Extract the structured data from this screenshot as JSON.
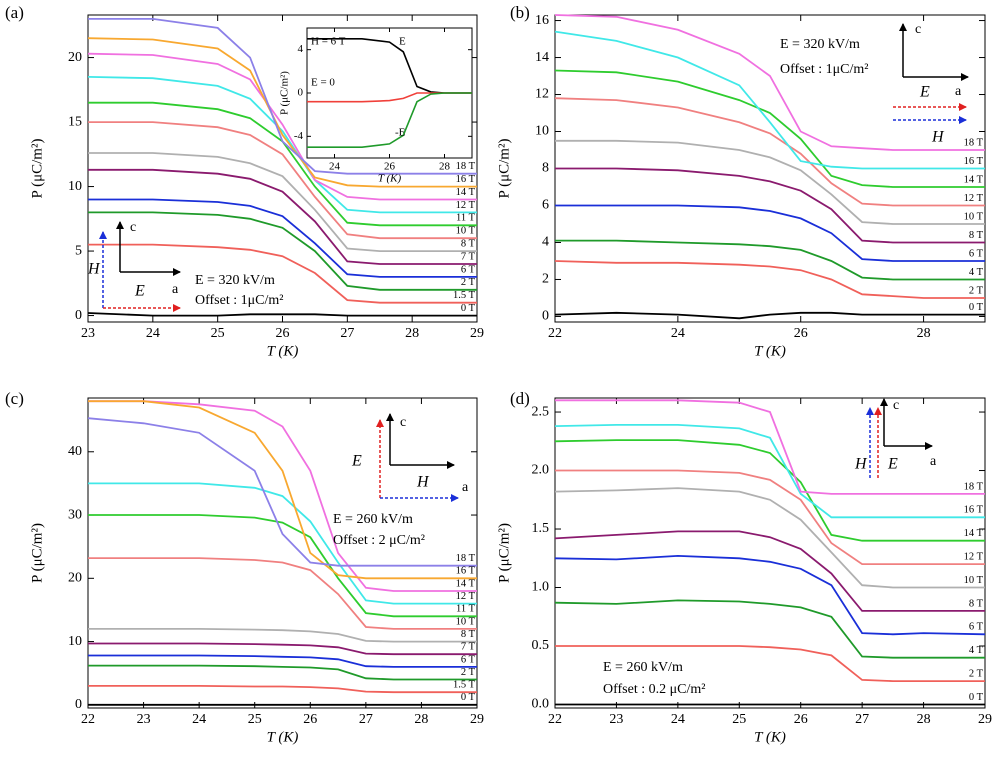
{
  "chart_data": [
    {
      "type": "line",
      "panel_label": "(a)",
      "x_label": "T (K)",
      "y_label": "P (μC/m²)",
      "xlim": [
        23,
        29
      ],
      "xticks": [
        23,
        24,
        25,
        26,
        27,
        28,
        29
      ],
      "ylim": [
        -0.5,
        23.3
      ],
      "yticks": [
        0,
        5,
        10,
        15,
        20
      ],
      "x": [
        23,
        24,
        25,
        25.5,
        26,
        26.5,
        27,
        27.5,
        28,
        29
      ],
      "series": [
        {
          "name": "0 T",
          "color": "#000000",
          "values": [
            0.2,
            0,
            0,
            0.1,
            0.1,
            0.1,
            0,
            0,
            0,
            0
          ]
        },
        {
          "name": "1.5 T",
          "color": "#f0605a",
          "values": [
            5.5,
            5.5,
            5.3,
            5.1,
            4.6,
            3.3,
            1.2,
            1,
            1,
            1
          ]
        },
        {
          "name": "2 T",
          "color": "#1f9a2a",
          "values": [
            8,
            8,
            7.8,
            7.5,
            6.8,
            5,
            2.3,
            2,
            2,
            2
          ]
        },
        {
          "name": "6 T",
          "color": "#1a2fd8",
          "values": [
            9,
            9,
            8.8,
            8.5,
            7.7,
            5.6,
            3.2,
            3,
            3,
            3
          ]
        },
        {
          "name": "7 T",
          "color": "#8a1a6e",
          "values": [
            11.3,
            11.3,
            11,
            10.6,
            9.6,
            7.3,
            4.2,
            4,
            4,
            4
          ]
        },
        {
          "name": "8 T",
          "color": "#b0b0b0",
          "values": [
            12.6,
            12.6,
            12.3,
            11.8,
            10.8,
            8.2,
            5.2,
            5,
            5,
            5
          ]
        },
        {
          "name": "10 T",
          "color": "#f08080",
          "values": [
            15,
            15,
            14.6,
            14,
            12.5,
            9.2,
            6.3,
            6,
            6,
            6
          ]
        },
        {
          "name": "11 T",
          "color": "#2ecc2e",
          "values": [
            16.5,
            16.5,
            16,
            15.3,
            13.5,
            10,
            7.2,
            7,
            7,
            7
          ]
        },
        {
          "name": "12 T",
          "color": "#40e8e8",
          "values": [
            18.5,
            18.4,
            17.8,
            16.8,
            14.3,
            10.5,
            8.2,
            8,
            8,
            8
          ]
        },
        {
          "name": "14 T",
          "color": "#f070e0",
          "values": [
            20.3,
            20.2,
            19.5,
            18.3,
            14.8,
            10.5,
            9.2,
            9,
            9,
            9
          ]
        },
        {
          "name": "16 T",
          "color": "#f8a830",
          "values": [
            21.5,
            21.4,
            20.7,
            19,
            14,
            10.7,
            10.1,
            10,
            10,
            10
          ]
        },
        {
          "name": "18 T",
          "color": "#8c80e8",
          "values": [
            23,
            23,
            22.3,
            20,
            13.5,
            11.2,
            11,
            11,
            11,
            11
          ]
        }
      ],
      "annotations": [
        "E = 320 kV/m",
        "Offset : 1μC/m²",
        "c",
        "a",
        "H",
        "E"
      ],
      "inset": {
        "type": "line",
        "x_label": "T (K)",
        "y_label": "P (μC/m²)",
        "annotation": "H = 6 T",
        "xlim": [
          23,
          29
        ],
        "xticks": [
          24,
          26,
          28
        ],
        "ylim": [
          -6,
          6
        ],
        "yticks": [
          -4,
          0,
          4
        ],
        "x": [
          23,
          24,
          25,
          26,
          26.5,
          27,
          27.5,
          28,
          29
        ],
        "series": [
          {
            "name": "E",
            "color": "#000000",
            "values": [
              5,
              5,
              5,
              4.7,
              3.8,
              0.6,
              0.1,
              0,
              0
            ]
          },
          {
            "name": "E = 0",
            "color": "#f0403a",
            "values": [
              -0.8,
              -0.8,
              -0.8,
              -0.7,
              -0.5,
              0,
              0,
              0,
              0
            ]
          },
          {
            "name": "-E",
            "color": "#1f9a2a",
            "values": [
              -5,
              -5,
              -5,
              -4.7,
              -3.9,
              -0.8,
              -0.1,
              0,
              0
            ]
          }
        ]
      }
    },
    {
      "type": "line",
      "panel_label": "(b)",
      "x_label": "T (K)",
      "y_label": "P (μC/m²)",
      "xlim": [
        22,
        29
      ],
      "xticks": [
        22,
        24,
        26,
        28
      ],
      "ylim": [
        -0.3,
        16.3
      ],
      "yticks": [
        0,
        2,
        4,
        6,
        8,
        10,
        12,
        14,
        16
      ],
      "x": [
        22,
        23,
        24,
        25,
        25.5,
        26,
        26.5,
        27,
        27.5,
        28,
        29
      ],
      "series": [
        {
          "name": "0 T",
          "color": "#000000",
          "values": [
            0.1,
            0.2,
            0.1,
            -0.1,
            0.1,
            0.2,
            0.2,
            0.1,
            0.1,
            0.1,
            0.1
          ]
        },
        {
          "name": "2 T",
          "color": "#f0605a",
          "values": [
            3,
            2.9,
            2.9,
            2.8,
            2.7,
            2.5,
            2,
            1.2,
            1.1,
            1,
            1
          ]
        },
        {
          "name": "4 T",
          "color": "#1f9a2a",
          "values": [
            4.1,
            4.1,
            4,
            3.9,
            3.8,
            3.6,
            3,
            2.1,
            2,
            2,
            2
          ]
        },
        {
          "name": "6 T",
          "color": "#1a2fd8",
          "values": [
            6,
            6,
            6,
            5.9,
            5.7,
            5.3,
            4.5,
            3.1,
            3,
            3,
            3
          ]
        },
        {
          "name": "8 T",
          "color": "#8a1a6e",
          "values": [
            8,
            8,
            7.9,
            7.6,
            7.3,
            6.8,
            5.8,
            4.1,
            4,
            4,
            4
          ]
        },
        {
          "name": "10 T",
          "color": "#b0b0b0",
          "values": [
            9.5,
            9.5,
            9.4,
            9,
            8.6,
            7.9,
            6.6,
            5.1,
            5,
            5,
            5
          ]
        },
        {
          "name": "12 T",
          "color": "#f08080",
          "values": [
            11.8,
            11.7,
            11.3,
            10.5,
            9.9,
            8.8,
            7.2,
            6.1,
            6,
            6,
            6
          ]
        },
        {
          "name": "14 T",
          "color": "#2ecc2e",
          "values": [
            13.3,
            13.2,
            12.7,
            11.7,
            11,
            9.6,
            7.6,
            7.1,
            7,
            7,
            7
          ]
        },
        {
          "name": "16 T",
          "color": "#40e8e8",
          "values": [
            15.4,
            14.9,
            14,
            12.5,
            10.5,
            8.4,
            8.1,
            8,
            8,
            8,
            8
          ]
        },
        {
          "name": "18 T",
          "color": "#f070e0",
          "values": [
            16.3,
            16.2,
            15.5,
            14.2,
            13,
            10,
            9.2,
            9.1,
            9,
            9,
            9
          ]
        }
      ],
      "annotations": [
        "E = 320 kV/m",
        "Offset : 1μC/m²",
        "c",
        "a",
        "E",
        "H"
      ]
    },
    {
      "type": "line",
      "panel_label": "(c)",
      "x_label": "T (K)",
      "y_label": "P (μC/m²)",
      "xlim": [
        22,
        29
      ],
      "xticks": [
        22,
        23,
        24,
        25,
        26,
        27,
        28,
        29
      ],
      "ylim": [
        -0.5,
        48.5
      ],
      "yticks": [
        0,
        10,
        20,
        30,
        40
      ],
      "x": [
        22,
        23,
        24,
        25,
        25.5,
        26,
        26.5,
        27,
        27.5,
        28,
        29
      ],
      "series": [
        {
          "name": "0 T",
          "color": "#000000",
          "values": [
            0,
            0,
            0,
            0,
            0,
            0,
            0,
            0,
            0,
            0,
            0
          ]
        },
        {
          "name": "1.5 T",
          "color": "#f0605a",
          "values": [
            3,
            3,
            3,
            2.9,
            2.9,
            2.8,
            2.6,
            2.1,
            2,
            2,
            2
          ]
        },
        {
          "name": "2 T",
          "color": "#1f9a2a",
          "values": [
            6.2,
            6.2,
            6.2,
            6.1,
            6,
            5.9,
            5.6,
            4.2,
            4,
            4,
            4
          ]
        },
        {
          "name": "6 T",
          "color": "#1a2fd8",
          "values": [
            7.8,
            7.8,
            7.8,
            7.7,
            7.6,
            7.5,
            7.2,
            6.1,
            6,
            6,
            6
          ]
        },
        {
          "name": "7 T",
          "color": "#8a1a6e",
          "values": [
            9.7,
            9.7,
            9.7,
            9.6,
            9.5,
            9.4,
            9.1,
            8.1,
            8,
            8,
            8
          ]
        },
        {
          "name": "8 T",
          "color": "#b0b0b0",
          "values": [
            12,
            12,
            12,
            11.9,
            11.8,
            11.6,
            11.2,
            10.1,
            10,
            10,
            10
          ]
        },
        {
          "name": "10 T",
          "color": "#f08080",
          "values": [
            23.2,
            23.2,
            23.2,
            22.9,
            22.5,
            21.3,
            17.5,
            12.3,
            12,
            12,
            12
          ]
        },
        {
          "name": "11 T",
          "color": "#2ecc2e",
          "values": [
            30,
            30,
            30,
            29.6,
            28.8,
            26.5,
            20,
            14.5,
            14,
            14,
            14
          ]
        },
        {
          "name": "12 T",
          "color": "#40e8e8",
          "values": [
            35,
            35,
            35,
            34.3,
            33,
            29,
            22.5,
            16.5,
            16,
            16,
            16
          ]
        },
        {
          "name": "14 T",
          "color": "#f070e0",
          "values": [
            48,
            48,
            47.5,
            46.5,
            44,
            37,
            24,
            18.5,
            18,
            18,
            18
          ]
        },
        {
          "name": "16 T",
          "color": "#f8a830",
          "values": [
            48,
            48,
            47,
            43,
            37,
            24,
            20.5,
            20,
            20,
            20,
            20
          ]
        },
        {
          "name": "18 T",
          "color": "#8c80e8",
          "values": [
            45.3,
            44.5,
            43,
            37,
            27,
            22.5,
            22,
            22,
            22,
            22,
            22
          ]
        }
      ],
      "annotations": [
        "E = 260 kV/m",
        "Offset : 2 μC/m²",
        "c",
        "a",
        "E",
        "H"
      ]
    },
    {
      "type": "line",
      "panel_label": "(d)",
      "x_label": "T (K)",
      "y_label": "P (μC/m²)",
      "xlim": [
        22,
        29
      ],
      "xticks": [
        22,
        23,
        24,
        25,
        26,
        27,
        28,
        29
      ],
      "ylim": [
        -0.03,
        2.62
      ],
      "yticks": [
        {
          "value": 0,
          "label": "0.0"
        },
        0.5,
        {
          "value": 1,
          "label": "1.0"
        },
        1.5,
        {
          "value": 2,
          "label": "2.0"
        },
        2.5
      ],
      "x": [
        22,
        23,
        24,
        25,
        25.5,
        26,
        26.5,
        27,
        27.5,
        28,
        29
      ],
      "series": [
        {
          "name": "0 T",
          "color": "#000000",
          "values": [
            0,
            0,
            0,
            0,
            0,
            0,
            0,
            0,
            0,
            0,
            0
          ]
        },
        {
          "name": "2 T",
          "color": "#f0605a",
          "values": [
            0.5,
            0.5,
            0.5,
            0.5,
            0.49,
            0.47,
            0.42,
            0.21,
            0.2,
            0.2,
            0.2
          ]
        },
        {
          "name": "4 T",
          "color": "#1f9a2a",
          "values": [
            0.87,
            0.86,
            0.89,
            0.88,
            0.86,
            0.83,
            0.75,
            0.41,
            0.4,
            0.4,
            0.4
          ]
        },
        {
          "name": "6 T",
          "color": "#1a2fd8",
          "values": [
            1.25,
            1.24,
            1.27,
            1.25,
            1.22,
            1.16,
            1.02,
            0.61,
            0.6,
            0.61,
            0.6
          ]
        },
        {
          "name": "8 T",
          "color": "#8a1a6e",
          "values": [
            1.42,
            1.45,
            1.48,
            1.48,
            1.43,
            1.33,
            1.12,
            0.8,
            0.8,
            0.8,
            0.8
          ]
        },
        {
          "name": "10 T",
          "color": "#b0b0b0",
          "values": [
            1.82,
            1.83,
            1.85,
            1.82,
            1.75,
            1.58,
            1.3,
            1.02,
            1,
            1,
            1
          ]
        },
        {
          "name": "12 T",
          "color": "#f08080",
          "values": [
            2,
            2,
            2,
            1.98,
            1.92,
            1.75,
            1.38,
            1.2,
            1.2,
            1.2,
            1.2
          ]
        },
        {
          "name": "14 T",
          "color": "#2ecc2e",
          "values": [
            2.25,
            2.26,
            2.26,
            2.22,
            2.15,
            1.9,
            1.45,
            1.4,
            1.4,
            1.4,
            1.4
          ]
        },
        {
          "name": "16 T",
          "color": "#40e8e8",
          "values": [
            2.38,
            2.39,
            2.39,
            2.36,
            2.28,
            1.8,
            1.6,
            1.6,
            1.6,
            1.6,
            1.6
          ]
        },
        {
          "name": "18 T",
          "color": "#f070e0",
          "values": [
            2.6,
            2.6,
            2.6,
            2.58,
            2.5,
            1.82,
            1.8,
            1.8,
            1.8,
            1.8,
            1.8
          ]
        }
      ],
      "annotations": [
        "E = 260 kV/m",
        "Offset : 0.2 μC/m²",
        "c",
        "a",
        "H",
        "E"
      ]
    }
  ]
}
